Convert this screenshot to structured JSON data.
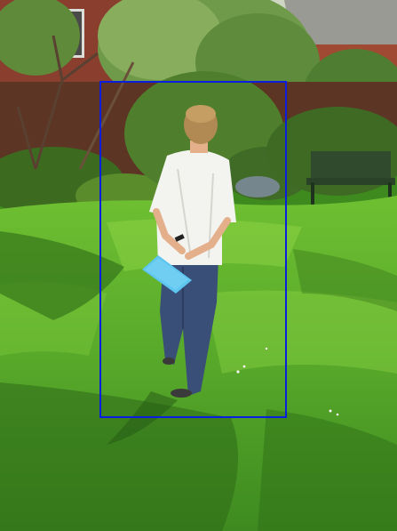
{
  "scene": {
    "description_tag": "garden-photo",
    "colors": {
      "lawn": "#4f9e25",
      "lawn_bright": "#7cc83a",
      "shadow": "#2d6a17",
      "brick": "#7a3b2c",
      "hedge": "#2f5a1c",
      "shirt": "#f3f3f0",
      "jeans": "#3a4f78",
      "hair": "#b08a52",
      "skin": "#e3b08b",
      "paper": "#5cc6f0",
      "box": "#0a1ee0"
    }
  },
  "annotation": {
    "box_color": "#0a1ee0"
  }
}
